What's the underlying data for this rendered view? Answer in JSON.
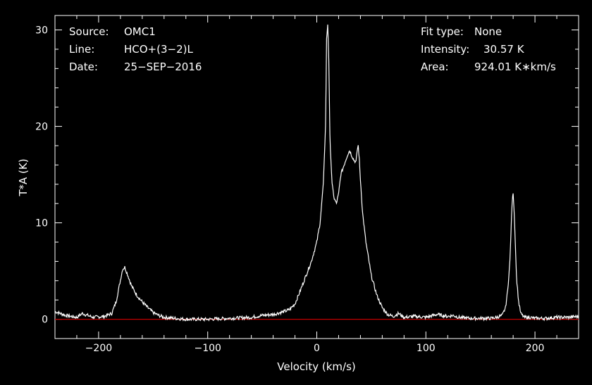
{
  "info": {
    "source_label": "Source:",
    "source_value": "OMC1",
    "line_label": "Line:",
    "line_value": "HCO+(3−2)L",
    "date_label": "Date:",
    "date_value": "25−SEP−2016",
    "fit_label": "Fit type:",
    "fit_value": "None",
    "intensity_label": "Intensity:",
    "intensity_value": "30.57 K",
    "area_label": "Area:",
    "area_value": "924.01 K∗km/s"
  },
  "chart_data": {
    "type": "line",
    "xlabel": "Velocity (km/s)",
    "ylabel": "T*A (K)",
    "xlim": [
      -240,
      240
    ],
    "ylim": [
      -2,
      31.5
    ],
    "xticks": [
      -200,
      -100,
      0,
      100,
      200
    ],
    "yticks": [
      0,
      10,
      20,
      30
    ],
    "xtick_labels": [
      "−200",
      "−100",
      "0",
      "100",
      "200"
    ],
    "ytick_labels": [
      "0",
      "10",
      "20",
      "30"
    ],
    "grid": false,
    "baseline": 0,
    "colors": {
      "background": "#000000",
      "line": "#ffffff",
      "axes": "#ffffff",
      "baseline": "#c00000"
    },
    "series": [
      {
        "x": [
          -240,
          -230,
          -220,
          -215,
          -205,
          -195,
          -188,
          -184,
          -181,
          -178,
          -176,
          -173,
          -170,
          -165,
          -160,
          -155,
          -150,
          -145,
          -140,
          -130,
          -120,
          -110,
          -100,
          -90,
          -80,
          -70,
          -60,
          -50,
          -40,
          -30,
          -25,
          -20,
          -15,
          -10,
          -5,
          0,
          3,
          6,
          8,
          9,
          10,
          11,
          12,
          14,
          16,
          18,
          20,
          22,
          25,
          28,
          30,
          32,
          34,
          36,
          37,
          38,
          39,
          40,
          42,
          45,
          50,
          55,
          60,
          65,
          70,
          75,
          80,
          90,
          100,
          110,
          120,
          125,
          130,
          140,
          150,
          160,
          165,
          170,
          173,
          175,
          177,
          178,
          179,
          180,
          181,
          182,
          183,
          185,
          187,
          190,
          195,
          200,
          210,
          220,
          230,
          240
        ],
        "y": [
          0.8,
          0.4,
          0.2,
          0.6,
          0.2,
          0.3,
          0.6,
          1.8,
          3.5,
          5.2,
          5.4,
          4.5,
          3.5,
          2.5,
          1.8,
          1.2,
          0.7,
          0.4,
          0.2,
          0.1,
          0.0,
          0.0,
          0.0,
          0.05,
          0.1,
          0.15,
          0.2,
          0.4,
          0.5,
          0.8,
          1.0,
          1.6,
          3.0,
          4.5,
          6.0,
          8.0,
          10.0,
          14.0,
          20.0,
          29.0,
          30.6,
          27.0,
          19.0,
          14.0,
          12.5,
          12.0,
          13.0,
          15.0,
          16.0,
          17.0,
          17.5,
          17.0,
          16.5,
          16.3,
          17.5,
          18.0,
          16.5,
          14.5,
          11.0,
          8.0,
          4.5,
          2.5,
          1.2,
          0.5,
          0.3,
          0.6,
          0.2,
          0.3,
          0.2,
          0.5,
          0.3,
          0.4,
          0.2,
          0.1,
          0.1,
          0.1,
          0.2,
          0.4,
          1.2,
          3.0,
          6.0,
          9.0,
          12.0,
          13.2,
          11.0,
          8.0,
          4.5,
          1.8,
          0.6,
          0.2,
          0.2,
          0.1,
          0.1,
          0.2,
          0.2,
          0.3
        ]
      }
    ]
  }
}
